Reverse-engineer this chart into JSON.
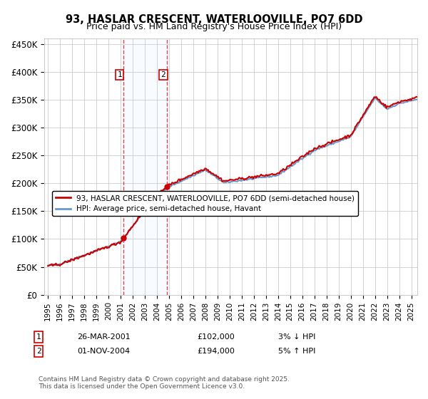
{
  "title": "93, HASLAR CRESCENT, WATERLOOVILLE, PO7 6DD",
  "subtitle": "Price paid vs. HM Land Registry's House Price Index (HPI)",
  "ylabel_ticks": [
    "£0",
    "£50K",
    "£100K",
    "£150K",
    "£200K",
    "£250K",
    "£300K",
    "£350K",
    "£400K",
    "£450K"
  ],
  "ytick_values": [
    0,
    50000,
    100000,
    150000,
    200000,
    250000,
    300000,
    350000,
    400000,
    450000
  ],
  "ylim": [
    0,
    460000
  ],
  "xlim_start": 1995.0,
  "xlim_end": 2025.5,
  "sale1_x": 2001.23,
  "sale1_y": 102000,
  "sale2_x": 2004.83,
  "sale2_y": 194000,
  "legend_line1": "93, HASLAR CRESCENT, WATERLOOVILLE, PO7 6DD (semi-detached house)",
  "legend_line2": "HPI: Average price, semi-detached house, Havant",
  "transaction1_label": "1",
  "transaction1_date": "26-MAR-2001",
  "transaction1_price": "£102,000",
  "transaction1_note": "3% ↓ HPI",
  "transaction2_label": "2",
  "transaction2_date": "01-NOV-2004",
  "transaction2_price": "£194,000",
  "transaction2_note": "5% ↑ HPI",
  "footer": "Contains HM Land Registry data © Crown copyright and database right 2025.\nThis data is licensed under the Open Government Licence v3.0.",
  "line_color_red": "#cc0000",
  "line_color_blue": "#6699cc",
  "shade_color": "#ddeeff",
  "grid_color": "#cccccc",
  "background_color": "#ffffff"
}
